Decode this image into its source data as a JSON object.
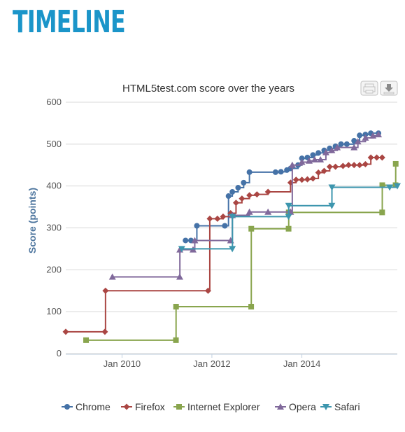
{
  "page": {
    "heading": "TIMELINE"
  },
  "toolbar": {
    "print_icon": "print-icon",
    "download_icon": "download-icon"
  },
  "chart_data": {
    "type": "line",
    "step": true,
    "title": "HTML5test.com score over the years",
    "xlabel": "",
    "ylabel": "Score (points)",
    "ylim": [
      0,
      600
    ],
    "yticks": [
      0,
      100,
      200,
      300,
      400,
      500,
      600
    ],
    "xlim": [
      "2008-10-01",
      "2016-02-15"
    ],
    "xticks": [
      {
        "date": "2010-01-01",
        "label": "Jan 2010"
      },
      {
        "date": "2012-01-01",
        "label": "Jan 2012"
      },
      {
        "date": "2014-01-01",
        "label": "Jan 2014"
      }
    ],
    "grid": true,
    "legend": "bottom",
    "series": [
      {
        "name": "Chrome",
        "color": "#4572a7",
        "marker": "circle",
        "points": [
          [
            "2011-06-01",
            270
          ],
          [
            "2011-07-15",
            270
          ],
          [
            "2011-09-01",
            305
          ],
          [
            "2012-04-15",
            305
          ],
          [
            "2012-05-15",
            376
          ],
          [
            "2012-06-15",
            386
          ],
          [
            "2012-08-01",
            396
          ],
          [
            "2012-09-15",
            408
          ],
          [
            "2012-11-01",
            433
          ],
          [
            "2013-06-01",
            433
          ],
          [
            "2013-07-15",
            434
          ],
          [
            "2013-09-01",
            438
          ],
          [
            "2013-10-01",
            442
          ],
          [
            "2013-12-01",
            450
          ],
          [
            "2014-01-01",
            466
          ],
          [
            "2014-02-15",
            468
          ],
          [
            "2014-04-01",
            474
          ],
          [
            "2014-05-15",
            479
          ],
          [
            "2014-07-01",
            485
          ],
          [
            "2014-08-15",
            490
          ],
          [
            "2014-10-01",
            495
          ],
          [
            "2014-11-15",
            500
          ],
          [
            "2015-01-01",
            500
          ],
          [
            "2015-03-01",
            508
          ],
          [
            "2015-04-15",
            521
          ],
          [
            "2015-06-01",
            523
          ],
          [
            "2015-07-15",
            526
          ],
          [
            "2015-09-15",
            526
          ]
        ]
      },
      {
        "name": "Firefox",
        "color": "#aa4643",
        "marker": "diamond",
        "points": [
          [
            "2008-10-01",
            52
          ],
          [
            "2009-08-15",
            52
          ],
          [
            "2009-08-20",
            150
          ],
          [
            "2011-12-01",
            150
          ],
          [
            "2011-12-15",
            322
          ],
          [
            "2012-02-15",
            322
          ],
          [
            "2012-04-01",
            327
          ],
          [
            "2012-06-01",
            335
          ],
          [
            "2012-07-15",
            360
          ],
          [
            "2012-09-01",
            370
          ],
          [
            "2012-11-01",
            378
          ],
          [
            "2013-01-01",
            380
          ],
          [
            "2013-04-01",
            386
          ],
          [
            "2013-10-01",
            408
          ],
          [
            "2013-11-15",
            415
          ],
          [
            "2014-01-01",
            415
          ],
          [
            "2014-02-15",
            416
          ],
          [
            "2014-04-01",
            418
          ],
          [
            "2014-05-15",
            432
          ],
          [
            "2014-07-01",
            436
          ],
          [
            "2014-08-15",
            446
          ],
          [
            "2014-10-01",
            446
          ],
          [
            "2014-12-01",
            448
          ],
          [
            "2015-01-15",
            450
          ],
          [
            "2015-03-01",
            450
          ],
          [
            "2015-04-15",
            450
          ],
          [
            "2015-06-01",
            452
          ],
          [
            "2015-07-15",
            468
          ],
          [
            "2015-09-01",
            468
          ],
          [
            "2015-10-15",
            468
          ]
        ]
      },
      {
        "name": "Internet Explorer",
        "color": "#89a54e",
        "marker": "square",
        "points": [
          [
            "2009-03-15",
            32
          ],
          [
            "2011-03-15",
            32
          ],
          [
            "2011-03-16",
            112
          ],
          [
            "2012-11-15",
            112
          ],
          [
            "2012-11-16",
            298
          ],
          [
            "2013-09-15",
            298
          ],
          [
            "2013-09-16",
            337
          ],
          [
            "2015-10-15",
            337
          ],
          [
            "2015-10-16",
            402
          ],
          [
            "2016-02-01",
            402
          ],
          [
            "2016-02-02",
            453
          ]
        ]
      },
      {
        "name": "Opera",
        "color": "#80699b",
        "marker": "triangle",
        "points": [
          [
            "2009-10-15",
            183
          ],
          [
            "2011-04-15",
            183
          ],
          [
            "2011-04-16",
            248
          ],
          [
            "2011-08-01",
            248
          ],
          [
            "2011-08-15",
            270
          ],
          [
            "2012-06-01",
            270
          ],
          [
            "2012-06-15",
            330
          ],
          [
            "2012-11-01",
            338
          ],
          [
            "2013-04-01",
            338
          ],
          [
            "2013-10-01",
            338
          ],
          [
            "2013-10-15",
            450
          ],
          [
            "2014-01-01",
            457
          ],
          [
            "2014-03-01",
            460
          ],
          [
            "2014-04-15",
            463
          ],
          [
            "2014-06-01",
            463
          ],
          [
            "2014-07-15",
            480
          ],
          [
            "2014-09-01",
            485
          ],
          [
            "2014-10-15",
            492
          ],
          [
            "2015-03-01",
            492
          ],
          [
            "2015-04-01",
            506
          ],
          [
            "2015-06-01",
            515
          ],
          [
            "2015-08-01",
            520
          ],
          [
            "2015-09-15",
            523
          ]
        ]
      },
      {
        "name": "Safari",
        "color": "#3d96ae",
        "marker": "triangle-down",
        "points": [
          [
            "2011-05-01",
            250
          ],
          [
            "2012-06-15",
            250
          ],
          [
            "2012-06-16",
            327
          ],
          [
            "2013-09-15",
            327
          ],
          [
            "2013-09-16",
            353
          ],
          [
            "2014-09-01",
            353
          ],
          [
            "2014-09-02",
            397
          ],
          [
            "2015-12-15",
            397
          ],
          [
            "2016-02-15",
            400
          ]
        ]
      }
    ]
  }
}
